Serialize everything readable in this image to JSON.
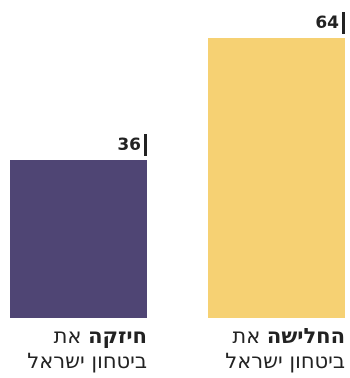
{
  "chart_data": {
    "type": "bar",
    "categories": [
      "החלישה את ביטחון ישראל",
      "חיזקה את ביטחון ישראל"
    ],
    "values": [
      64,
      36
    ],
    "labels": [
      {
        "bold": "החלישה",
        "rest": " את",
        "line2": "ביטחון ישראל"
      },
      {
        "bold": "חיזקה",
        "rest": " את",
        "line2": "ביטחון ישראל"
      }
    ],
    "colors": [
      "#f6d173",
      "#4f4574"
    ],
    "title": "",
    "xlabel": "",
    "ylabel": "",
    "ylim": [
      0,
      64
    ]
  }
}
